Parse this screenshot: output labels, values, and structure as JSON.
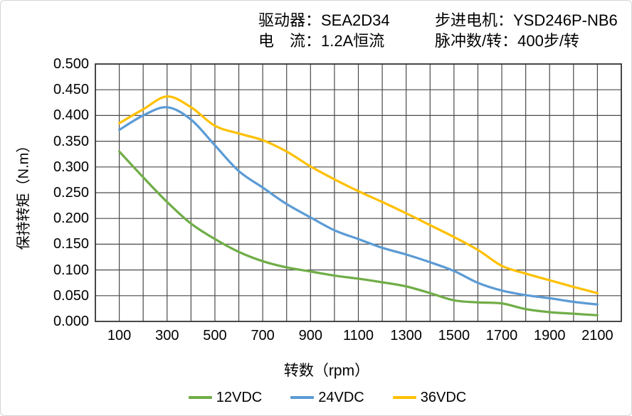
{
  "header": {
    "col1": [
      "驱动器：SEA2D34",
      "电　流：1.2A恒流"
    ],
    "col2": [
      "步进电机：YSD246P-NB6",
      "脉冲数/转：400步/转"
    ]
  },
  "chart_data": {
    "type": "line",
    "title": "",
    "xlabel": "转数（rpm）",
    "ylabel": "保持转矩（N.m）",
    "x": [
      100,
      200,
      300,
      400,
      500,
      600,
      700,
      800,
      900,
      1000,
      1100,
      1200,
      1300,
      1400,
      1500,
      1600,
      1700,
      1800,
      1900,
      2000,
      2100
    ],
    "series": [
      {
        "name": "12VDC",
        "color": "#70AD47",
        "values": [
          0.33,
          0.28,
          0.232,
          0.19,
          0.16,
          0.135,
          0.117,
          0.105,
          0.097,
          0.089,
          0.083,
          0.076,
          0.068,
          0.055,
          0.041,
          0.037,
          0.035,
          0.024,
          0.018,
          0.015,
          0.012
        ]
      },
      {
        "name": "24VDC",
        "color": "#5B9BD5",
        "values": [
          0.372,
          0.4,
          0.416,
          0.392,
          0.342,
          0.292,
          0.26,
          0.228,
          0.202,
          0.177,
          0.16,
          0.143,
          0.13,
          0.115,
          0.098,
          0.075,
          0.06,
          0.051,
          0.045,
          0.038,
          0.033
        ]
      },
      {
        "name": "36VDC",
        "color": "#FFC000",
        "values": [
          0.385,
          0.412,
          0.437,
          0.416,
          0.38,
          0.365,
          0.352,
          0.33,
          0.301,
          0.276,
          0.253,
          0.232,
          0.21,
          0.187,
          0.164,
          0.139,
          0.108,
          0.093,
          0.08,
          0.067,
          0.055
        ]
      }
    ],
    "xlim": [
      0,
      2200
    ],
    "ylim": [
      0,
      0.5
    ],
    "x_grid_step": 100,
    "y_grid_step": 0.05,
    "x_tick_values": [
      100,
      300,
      500,
      700,
      900,
      1100,
      1300,
      1500,
      1700,
      1900,
      2100
    ],
    "x_tick_labels": [
      "100",
      "300",
      "500",
      "700",
      "900",
      "1100",
      "1300",
      "1500",
      "1700",
      "1900",
      "2100"
    ],
    "y_tick_values": [
      0,
      0.05,
      0.1,
      0.15,
      0.2,
      0.25,
      0.3,
      0.35,
      0.4,
      0.45,
      0.5
    ],
    "y_tick_labels": [
      "0.000",
      "0.050",
      "0.100",
      "0.150",
      "0.200",
      "0.250",
      "0.300",
      "0.350",
      "0.400",
      "0.450",
      "0.500"
    ],
    "grid": true,
    "legend_position": "bottom",
    "grid_color": "#4a4a4a",
    "axis_color": "#333333",
    "text_color": "#000000"
  }
}
